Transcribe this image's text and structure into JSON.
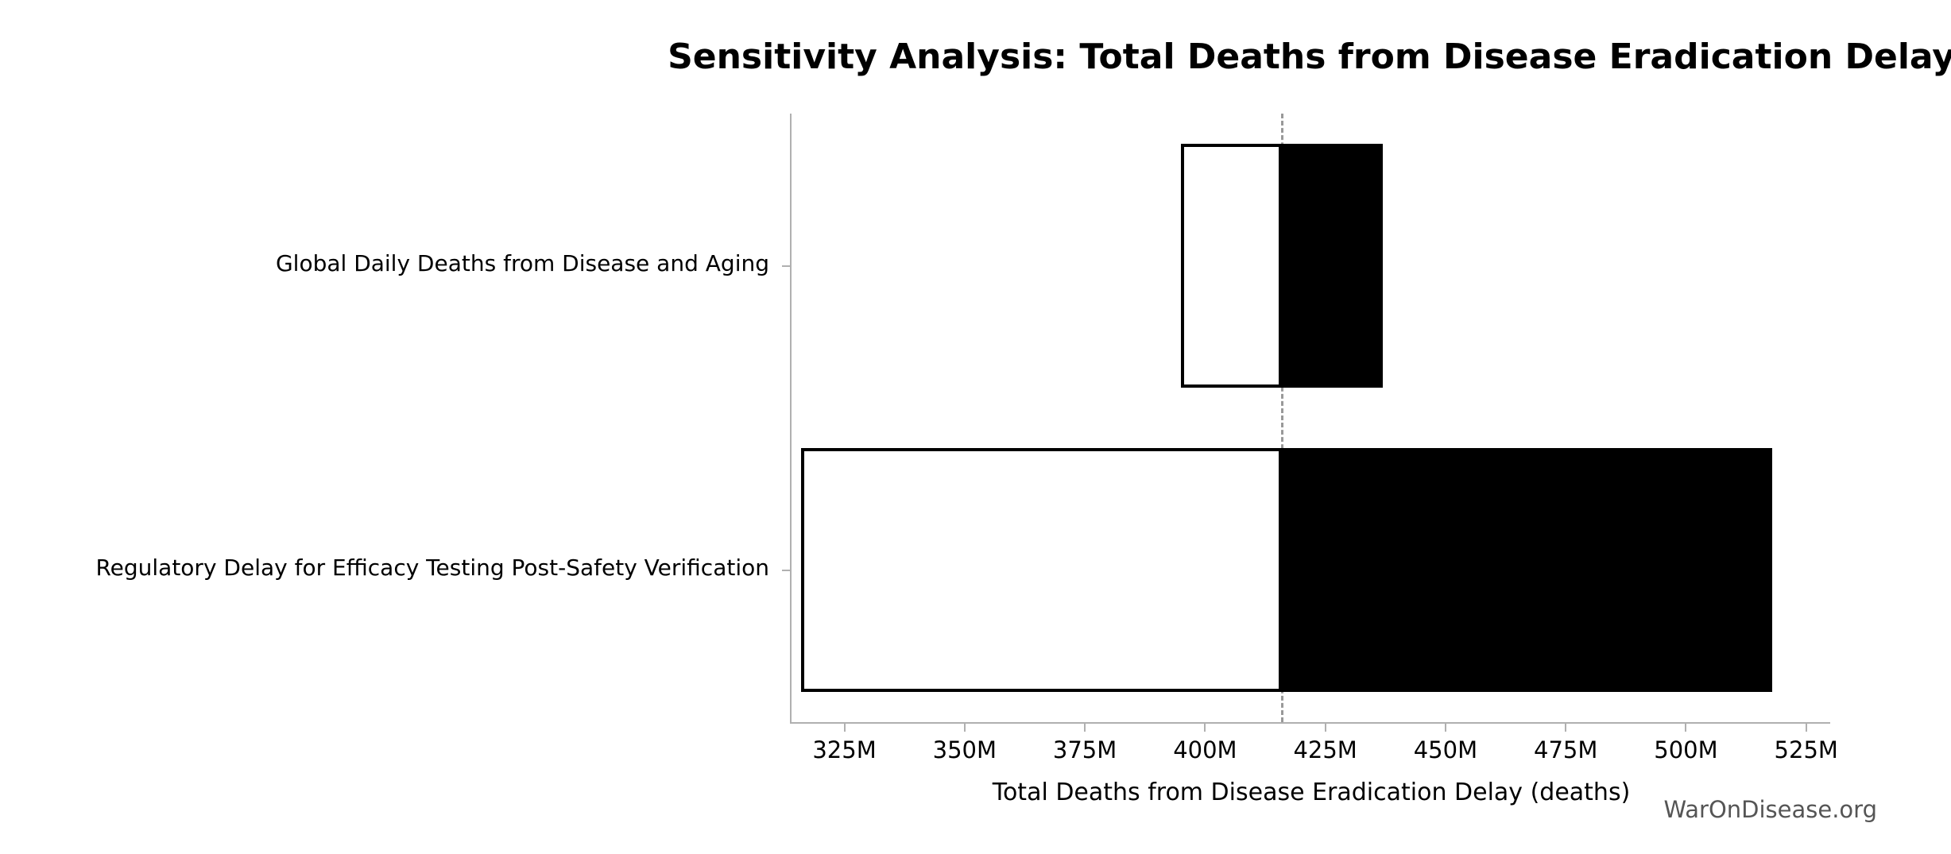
{
  "watermark": "WarOnDisease.org",
  "chart_data": {
    "type": "bar",
    "subtype": "tornado",
    "orientation": "horizontal",
    "title": "Sensitivity Analysis: Total Deaths from Disease Eradication Delay",
    "xlabel": "Total Deaths from Disease Eradication Delay (deaths)",
    "ylabel": "",
    "unit": "M (millions of deaths)",
    "xlim": [
      314,
      530
    ],
    "baseline": 416,
    "grid": false,
    "legend": false,
    "xticks": [
      {
        "value": 325,
        "label": "325M"
      },
      {
        "value": 350,
        "label": "350M"
      },
      {
        "value": 375,
        "label": "375M"
      },
      {
        "value": 400,
        "label": "400M"
      },
      {
        "value": 425,
        "label": "425M"
      },
      {
        "value": 450,
        "label": "450M"
      },
      {
        "value": 475,
        "label": "475M"
      },
      {
        "value": 500,
        "label": "500M"
      },
      {
        "value": 525,
        "label": "525M"
      }
    ],
    "categories": [
      "Global Daily Deaths from Disease and Aging",
      "Regulatory Delay for Efficacy Testing Post-Safety Verification"
    ],
    "bars": [
      {
        "category": "Global Daily Deaths from Disease and Aging",
        "low": 395,
        "high": 437
      },
      {
        "category": "Regulatory Delay for Efficacy Testing Post-Safety Verification",
        "low": 316,
        "high": 518
      }
    ],
    "styles": {
      "low_fill": "#ffffff",
      "high_fill": "#000000",
      "bar_border": "#000000",
      "baseline_line_color": "#999999",
      "baseline_line_style": "dashed",
      "spine_color": "#b0b0b0",
      "text_color": "#000000",
      "watermark_color": "#555555"
    }
  }
}
